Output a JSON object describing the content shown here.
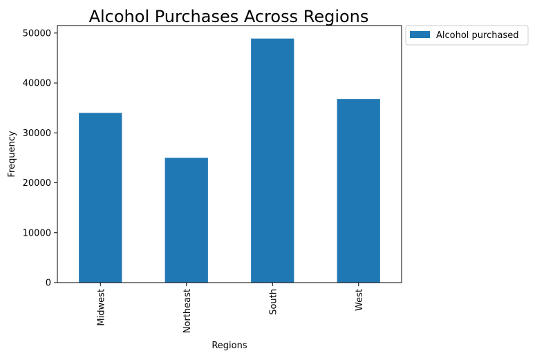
{
  "chart_data": {
    "type": "bar",
    "title": "Alcohol Purchases Across Regions",
    "xlabel": "Regions",
    "ylabel": "Frequency",
    "categories": [
      "Midwest",
      "Northeast",
      "South",
      "West"
    ],
    "series": [
      {
        "name": "Alcohol purchased",
        "values": [
          34000,
          25000,
          48900,
          36800
        ]
      }
    ],
    "ylim": [
      0,
      51500
    ],
    "yticks": [
      0,
      10000,
      20000,
      30000,
      40000,
      50000
    ],
    "grid": false,
    "legend_position": "outside top-right",
    "bar_color": "#1f77b4"
  }
}
